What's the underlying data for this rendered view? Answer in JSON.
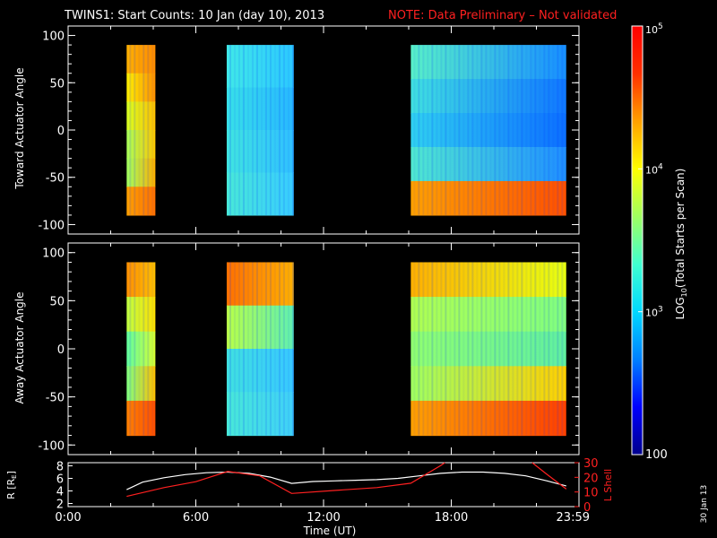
{
  "title": {
    "main": "TWINS1: Start Counts: 10 Jan (day  10), 2013",
    "note": "NOTE: Data Preliminary – Not validated",
    "note_color": "#ff2020"
  },
  "date_stamp": "30 Jan 13",
  "colors": {
    "background": "#000000",
    "axes": "#ffffff",
    "lshell": "#ff2020",
    "r_line": "#ffffff"
  },
  "colorbar": {
    "label_parts": [
      "LOG",
      "10",
      "(Total Starts per Scan)"
    ],
    "ticks": [
      {
        "base": "10",
        "exp": "5",
        "value": 100000
      },
      {
        "base": "10",
        "exp": "4",
        "value": 10000
      },
      {
        "base": "10",
        "exp": "3",
        "value": 1000
      },
      {
        "base": "100",
        "exp": "",
        "value": 100
      }
    ],
    "stops": [
      "#00008c",
      "#0000ff",
      "#0080ff",
      "#00d8ff",
      "#40ffd0",
      "#a0ff60",
      "#ffff00",
      "#ffa000",
      "#ff3000",
      "#ff0000"
    ]
  },
  "chart_data": [
    {
      "type": "heatmap",
      "title": "",
      "ylabel": "Toward Actuator Angle",
      "ylim": [
        -110,
        110
      ],
      "yticks": [
        100,
        50,
        0,
        -50,
        -100
      ],
      "xlim": [
        0,
        24
      ],
      "angle_range": [
        -90,
        90
      ],
      "scale": "log",
      "intervals": [
        {
          "start": 2.75,
          "end": 4.1,
          "profile": [
            [
              "#ffb000",
              "#ff8c00"
            ],
            [
              "#fff000",
              "#ff9000"
            ],
            [
              "#d8ff20",
              "#ffc000"
            ],
            [
              "#a8ff58",
              "#ffc800"
            ],
            [
              "#a0ff60",
              "#ffb000"
            ],
            [
              "#ffa000",
              "#ff7000"
            ]
          ]
        },
        {
          "start": 7.45,
          "end": 10.6,
          "profile": [
            [
              "#40e8e8",
              "#2cc8ff"
            ],
            [
              "#38e0e8",
              "#28b8ff"
            ],
            [
              "#40e4e0",
              "#30c0ff"
            ],
            [
              "#48e8d8",
              "#38ccff"
            ]
          ]
        },
        {
          "start": 16.1,
          "end": 23.4,
          "profile": [
            [
              "#58f0c8",
              "#1890ff"
            ],
            [
              "#40e0e0",
              "#1078ff"
            ],
            [
              "#30d0f0",
              "#0c70ff"
            ],
            [
              "#50e8d0",
              "#2090ff"
            ],
            [
              "#ffa000",
              "#ff5000"
            ]
          ]
        }
      ]
    },
    {
      "type": "heatmap",
      "title": "",
      "ylabel": "Away Actuator Angle",
      "ylim": [
        -110,
        110
      ],
      "yticks": [
        100,
        50,
        0,
        -50,
        -100
      ],
      "xlim": [
        0,
        24
      ],
      "angle_range": [
        -90,
        90
      ],
      "scale": "log",
      "intervals": [
        {
          "start": 2.75,
          "end": 4.1,
          "profile": [
            [
              "#ff9000",
              "#ffc000"
            ],
            [
              "#c0ff40",
              "#ffe000"
            ],
            [
              "#60ffa0",
              "#d8ff30"
            ],
            [
              "#80ff80",
              "#ffc000"
            ],
            [
              "#ff8000",
              "#ff5000"
            ]
          ]
        },
        {
          "start": 7.45,
          "end": 10.6,
          "profile": [
            [
              "#ff7000",
              "#ffb000"
            ],
            [
              "#b8ff48",
              "#60f0b0"
            ],
            [
              "#40e0e0",
              "#38c8ff"
            ],
            [
              "#48e8d8",
              "#40d0f8"
            ]
          ]
        },
        {
          "start": 16.1,
          "end": 23.4,
          "profile": [
            [
              "#ffb000",
              "#e8ff10"
            ],
            [
              "#b0ff50",
              "#80ff80"
            ],
            [
              "#90ff70",
              "#60f0a0"
            ],
            [
              "#a0ff60",
              "#ffd000"
            ],
            [
              "#ffa000",
              "#ff4000"
            ]
          ]
        }
      ]
    },
    {
      "type": "line",
      "title": "",
      "xlabel": "Time (UT)",
      "xlim": [
        0,
        24
      ],
      "xticks": [
        0,
        6,
        12,
        18,
        24
      ],
      "xtick_labels": [
        "0:00",
        "6:00",
        "12:00",
        "18:00",
        "23:59"
      ],
      "ylabel_left_parts": [
        "R [R",
        "E",
        "]"
      ],
      "ylim_left": [
        1.5,
        8.5
      ],
      "yticks_left": [
        2,
        4,
        6,
        8
      ],
      "ylabel_right": "L Shell",
      "ylim_right": [
        0,
        30
      ],
      "yticks_right": [
        0,
        10,
        20,
        30
      ],
      "series": [
        {
          "axis": "left",
          "color": "#ffffff",
          "x": [
            2.75,
            3.5,
            4.5,
            5.5,
            6.5,
            7.5,
            8.5,
            9.5,
            10.5,
            11.5,
            12.5,
            13.5,
            14.5,
            15.5,
            16.5,
            17.5,
            18.5,
            19.5,
            20.5,
            21.5,
            22.5,
            23.4
          ],
          "y": [
            4.2,
            5.4,
            6.1,
            6.6,
            6.9,
            7.0,
            6.8,
            6.2,
            5.2,
            5.5,
            5.6,
            5.7,
            5.8,
            6.0,
            6.4,
            6.8,
            7.0,
            7.0,
            6.8,
            6.4,
            5.6,
            4.8
          ]
        },
        {
          "axis": "right",
          "color": "#ff2020",
          "x": [
            2.75,
            4.5,
            6.0,
            7.5,
            9.0,
            10.5,
            12.5,
            14.5,
            16.1,
            17.5,
            17.7
          ],
          "y": [
            7,
            13,
            17,
            24,
            21,
            9,
            11,
            13,
            16,
            28,
            30
          ]
        },
        {
          "axis": "right",
          "color": "#ff2020",
          "x": [
            21.8,
            22.5,
            23.4
          ],
          "y": [
            30,
            22,
            12
          ]
        }
      ]
    }
  ]
}
